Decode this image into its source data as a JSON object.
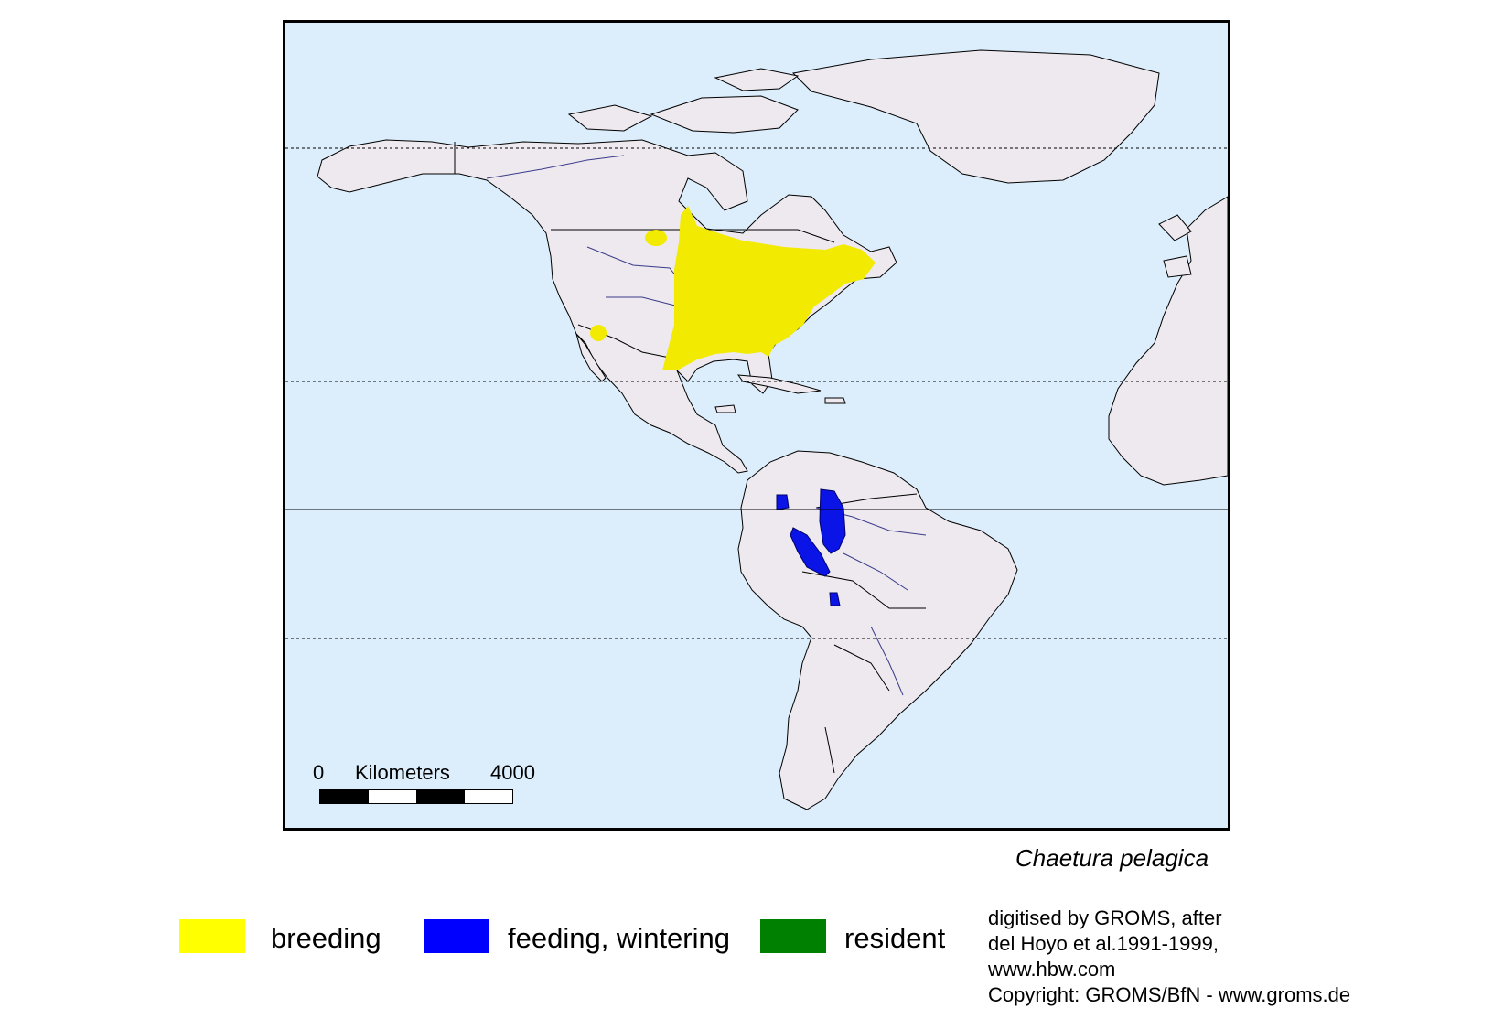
{
  "map": {
    "species": "Chaetura pelagica",
    "colors": {
      "ocean": "#dcedfb",
      "land": "#ede9ee",
      "breeding": "#f2ea00",
      "feeding_wintering": "#0a14e6",
      "resident": "#0d8a10"
    },
    "scale": {
      "start": "0",
      "unit": "Kilometers",
      "end": "4000"
    }
  },
  "legend": {
    "items": [
      {
        "label": "breeding",
        "color": "#ffff00"
      },
      {
        "label": "feeding, wintering",
        "color": "#0000ff"
      },
      {
        "label": "resident",
        "color": "#008000"
      }
    ]
  },
  "credits": {
    "line1": "digitised by GROMS, after",
    "line2": "del Hoyo et al.1991-1999,",
    "line3": "www.hbw.com",
    "line4": "Copyright: GROMS/BfN - www.groms.de"
  }
}
